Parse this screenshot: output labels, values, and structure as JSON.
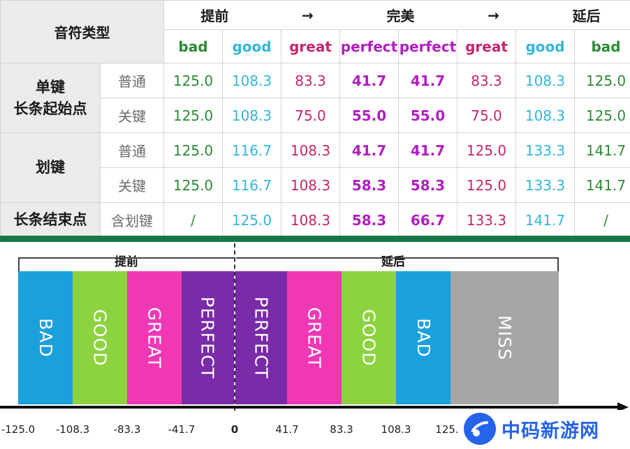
{
  "table": {
    "header_title": "音符类型",
    "direction": {
      "early": "提前",
      "arrow1": "→",
      "perfect": "完美",
      "arrow2": "→",
      "late": "延后"
    },
    "grades": [
      {
        "label": "bad",
        "color": "#2d8a36"
      },
      {
        "label": "good",
        "color": "#33b6d6"
      },
      {
        "label": "great",
        "color": "#c4266e"
      },
      {
        "label": "perfect",
        "color": "#b11ec1"
      },
      {
        "label": "perfect",
        "color": "#b11ec1"
      },
      {
        "label": "great",
        "color": "#c4266e"
      },
      {
        "label": "good",
        "color": "#33b6d6"
      },
      {
        "label": "bad",
        "color": "#2d8a36"
      }
    ],
    "categories": {
      "tap_hold_start": {
        "line1": "单键",
        "line2": "长条起始点"
      },
      "flick": "划键",
      "hold_end": "长条结束点"
    },
    "rows": [
      {
        "sub": "普通",
        "values": [
          "125.0",
          "108.3",
          "83.3",
          "41.7",
          "41.7",
          "83.3",
          "108.3",
          "125.0"
        ]
      },
      {
        "sub": "关键",
        "values": [
          "125.0",
          "108.3",
          "75.0",
          "55.0",
          "55.0",
          "75.0",
          "108.3",
          "125.0"
        ]
      },
      {
        "sub": "普通",
        "values": [
          "125.0",
          "116.7",
          "108.3",
          "41.7",
          "41.7",
          "125.0",
          "133.3",
          "141.7"
        ]
      },
      {
        "sub": "关键",
        "values": [
          "125.0",
          "116.7",
          "108.3",
          "58.3",
          "58.3",
          "125.0",
          "133.3",
          "141.7"
        ]
      },
      {
        "sub": "含划键",
        "values": [
          "/",
          "125.0",
          "108.3",
          "58.3",
          "66.7",
          "133.3",
          "141.7",
          "/"
        ]
      }
    ]
  },
  "diagram": {
    "early_label": "提前",
    "late_label": "延后",
    "segments": [
      {
        "label": "BAD",
        "color": "#1aa0dc"
      },
      {
        "label": "GOOD",
        "color": "#8cd33f"
      },
      {
        "label": "GREAT",
        "color": "#f038b4"
      },
      {
        "label": "PERFECT",
        "color": "#7a2ba8"
      },
      {
        "label": "PERFECT",
        "color": "#7a2ba8"
      },
      {
        "label": "GREAT",
        "color": "#f038b4"
      },
      {
        "label": "GOOD",
        "color": "#8cd33f"
      },
      {
        "label": "BAD",
        "color": "#1aa0dc"
      },
      {
        "label": "MISS",
        "color": "#a6a6a6"
      }
    ],
    "ticks": [
      "-125.0",
      "-108.3",
      "-83.3",
      "-41.7",
      "0",
      "41.7",
      "83.3",
      "108.3",
      "125."
    ]
  },
  "watermark": {
    "text": "中码新游网",
    "icon": "paper-plane-icon"
  }
}
